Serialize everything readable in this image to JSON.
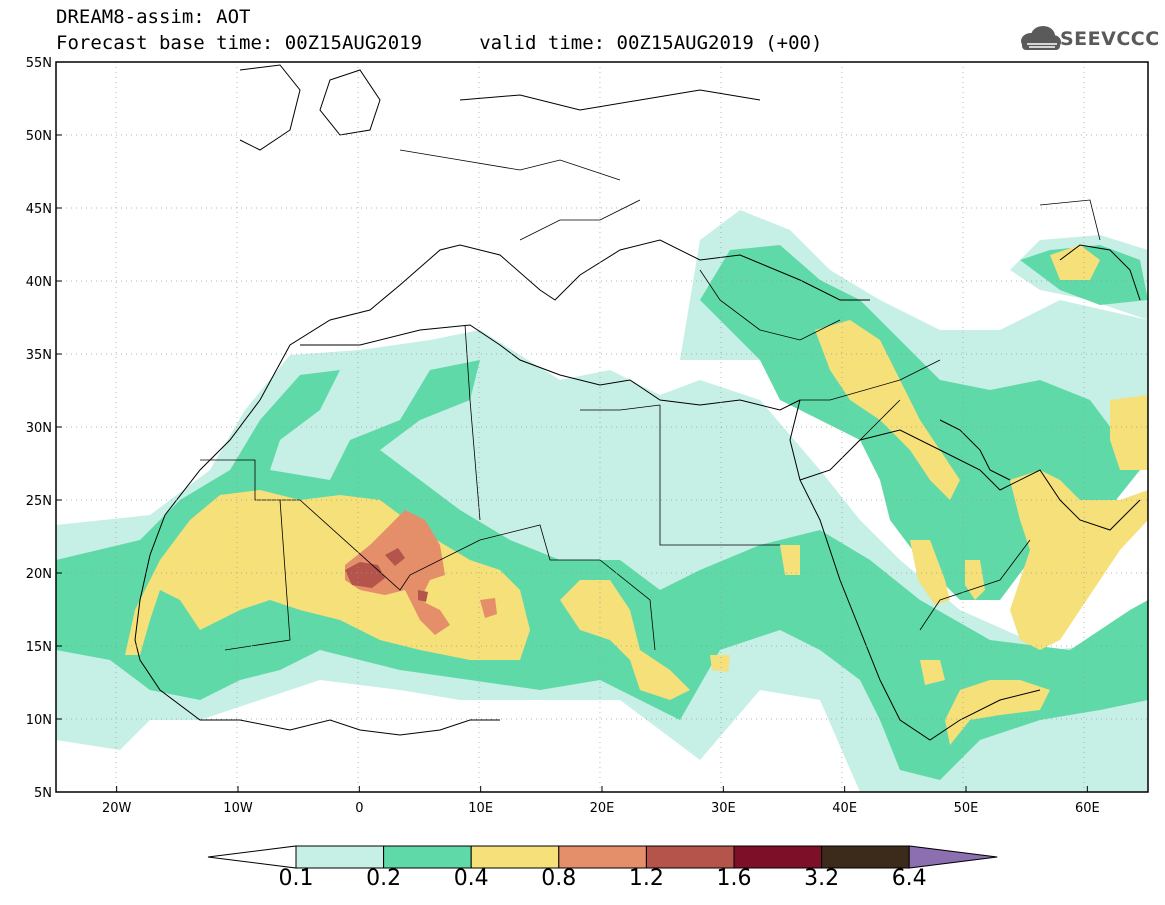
{
  "header": {
    "title_line1": "DREAM8-assim: AOT",
    "title_line2": "Forecast base time: 00Z15AUG2019     valid time: 00Z15AUG2019 (+00)",
    "logo_text": "SEEVCCC",
    "logo_icon": "cloud-logo-icon"
  },
  "map": {
    "lat_labels": [
      "55N",
      "50N",
      "45N",
      "40N",
      "35N",
      "30N",
      "25N",
      "20N",
      "15N",
      "10N",
      "5N"
    ],
    "lon_labels": [
      "20W",
      "10W",
      "0",
      "10E",
      "20E",
      "30E",
      "40E",
      "50E",
      "60E"
    ],
    "lat_range": [
      5,
      55
    ],
    "lon_range": [
      -25,
      65
    ]
  },
  "colorbar": {
    "labels": [
      "0.1",
      "0.2",
      "0.4",
      "0.8",
      "1.2",
      "1.6",
      "3.2",
      "6.4"
    ],
    "colors": [
      "#ffffff",
      "#c6efe6",
      "#5fd9a8",
      "#f5e07a",
      "#e58e6a",
      "#b4544a",
      "#7d0f28",
      "#3c2a1a",
      "#8c6fb0"
    ]
  }
}
